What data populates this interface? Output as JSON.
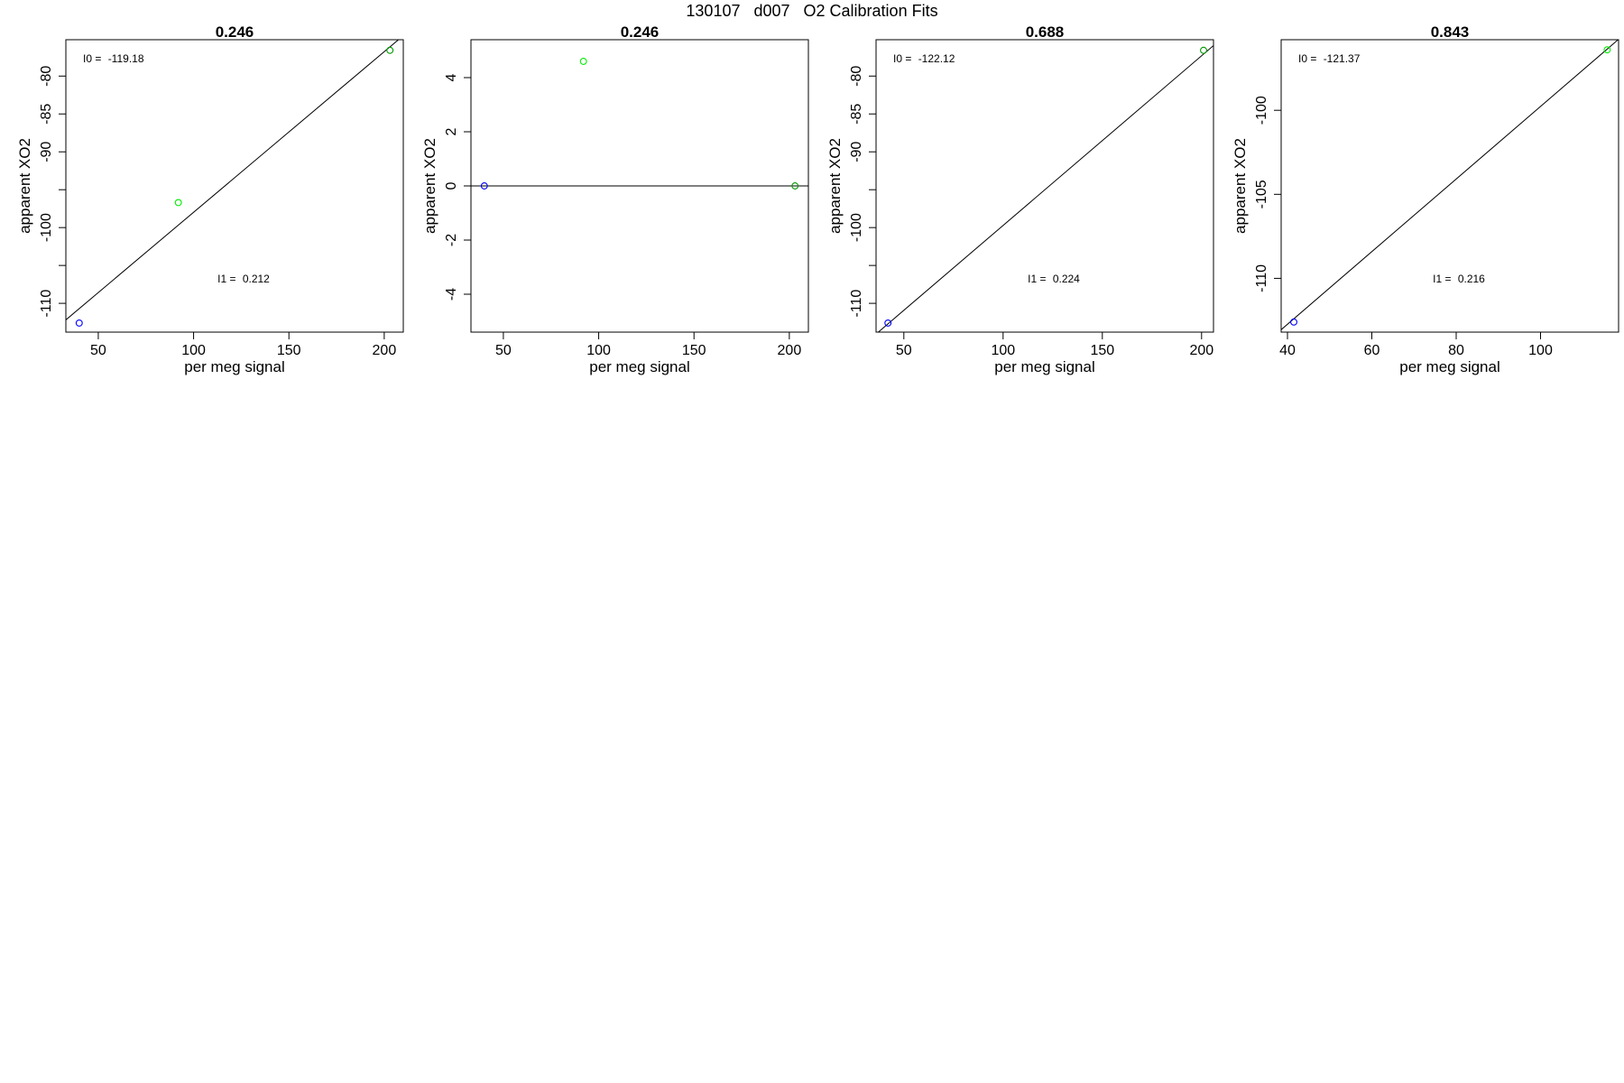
{
  "page_title": "130107   d007   O2 Calibration Fits",
  "colors": {
    "blue": "#0000ff",
    "light_green": "#00ee00",
    "dark_green": "#009900",
    "line": "#000000"
  },
  "chart_data": [
    {
      "type": "scatter",
      "title": "0.246",
      "xlabel": "per meg signal",
      "ylabel": "apparent XO2",
      "xlim": [
        33,
        210
      ],
      "ylim": [
        -113.8,
        -75.2
      ],
      "xticks": [
        50,
        100,
        150,
        200
      ],
      "xtick_labels": [
        "50",
        "100",
        "150",
        "200"
      ],
      "yticks": [
        -80,
        -85,
        -90,
        -95,
        -100,
        -105,
        -110
      ],
      "ytick_labels": [
        "-80",
        "-85",
        "-90",
        "",
        "-100",
        "",
        "-110"
      ],
      "points": [
        {
          "x": 40,
          "y": -112.6,
          "color": "blue"
        },
        {
          "x": 92,
          "y": -96.7,
          "color": "light_green"
        },
        {
          "x": 203,
          "y": -76.6,
          "color": "dark_green"
        }
      ],
      "fit_line": {
        "intercept": -119.18,
        "slope": 0.212
      },
      "annotations": {
        "i0_label": "I0 = ",
        "i0_value": "-119.18",
        "i1_label": "I1 = ",
        "i1_value": "0.212"
      }
    },
    {
      "type": "scatter",
      "title": "0.246",
      "xlabel": "per meg signal",
      "ylabel": "apparent XO2",
      "xlim": [
        33,
        210
      ],
      "ylim": [
        -5.4,
        5.4
      ],
      "xticks": [
        50,
        100,
        150,
        200
      ],
      "xtick_labels": [
        "50",
        "100",
        "150",
        "200"
      ],
      "yticks": [
        4,
        2,
        0,
        -2,
        -4
      ],
      "ytick_labels": [
        "4",
        "2",
        "0",
        "-2",
        "-4"
      ],
      "points": [
        {
          "x": 40,
          "y": 0,
          "color": "blue"
        },
        {
          "x": 92,
          "y": 4.6,
          "color": "light_green"
        },
        {
          "x": 203,
          "y": 0,
          "color": "dark_green"
        }
      ],
      "fit_line": {
        "intercept": 0,
        "slope": 0
      },
      "annotations": {}
    },
    {
      "type": "scatter",
      "title": "0.688",
      "xlabel": "per meg signal",
      "ylabel": "apparent XO2",
      "xlim": [
        36,
        206
      ],
      "ylim": [
        -113.8,
        -75.2
      ],
      "xticks": [
        50,
        100,
        150,
        200
      ],
      "xtick_labels": [
        "50",
        "100",
        "150",
        "200"
      ],
      "yticks": [
        -80,
        -85,
        -90,
        -95,
        -100,
        -105,
        -110
      ],
      "ytick_labels": [
        "-80",
        "-85",
        "-90",
        "",
        "-100",
        "",
        "-110"
      ],
      "points": [
        {
          "x": 42,
          "y": -112.6,
          "color": "blue"
        },
        {
          "x": 201,
          "y": -76.6,
          "color": "dark_green"
        }
      ],
      "fit_line": {
        "intercept": -122.12,
        "slope": 0.224
      },
      "annotations": {
        "i0_label": "I0 = ",
        "i0_value": "-122.12",
        "i1_label": "I1 = ",
        "i1_value": "0.224"
      }
    },
    {
      "type": "scatter",
      "title": "0.843",
      "xlabel": "per meg signal",
      "ylabel": "apparent XO2",
      "xlim": [
        38.5,
        118.5
      ],
      "ylim": [
        -113.2,
        -95.8
      ],
      "xticks": [
        40,
        60,
        80,
        100
      ],
      "xtick_labels": [
        "40",
        "60",
        "80",
        "100"
      ],
      "yticks": [
        -100,
        -105,
        -110
      ],
      "ytick_labels": [
        "-100",
        "-105",
        "-110"
      ],
      "points": [
        {
          "x": 41.5,
          "y": -112.6,
          "color": "blue"
        },
        {
          "x": 115.8,
          "y": -96.4,
          "color": "light_green"
        }
      ],
      "fit_line": {
        "intercept": -121.37,
        "slope": 0.216
      },
      "annotations": {
        "i0_label": "I0 = ",
        "i0_value": "-121.37",
        "i1_label": "I1 = ",
        "i1_value": "0.216"
      }
    }
  ]
}
